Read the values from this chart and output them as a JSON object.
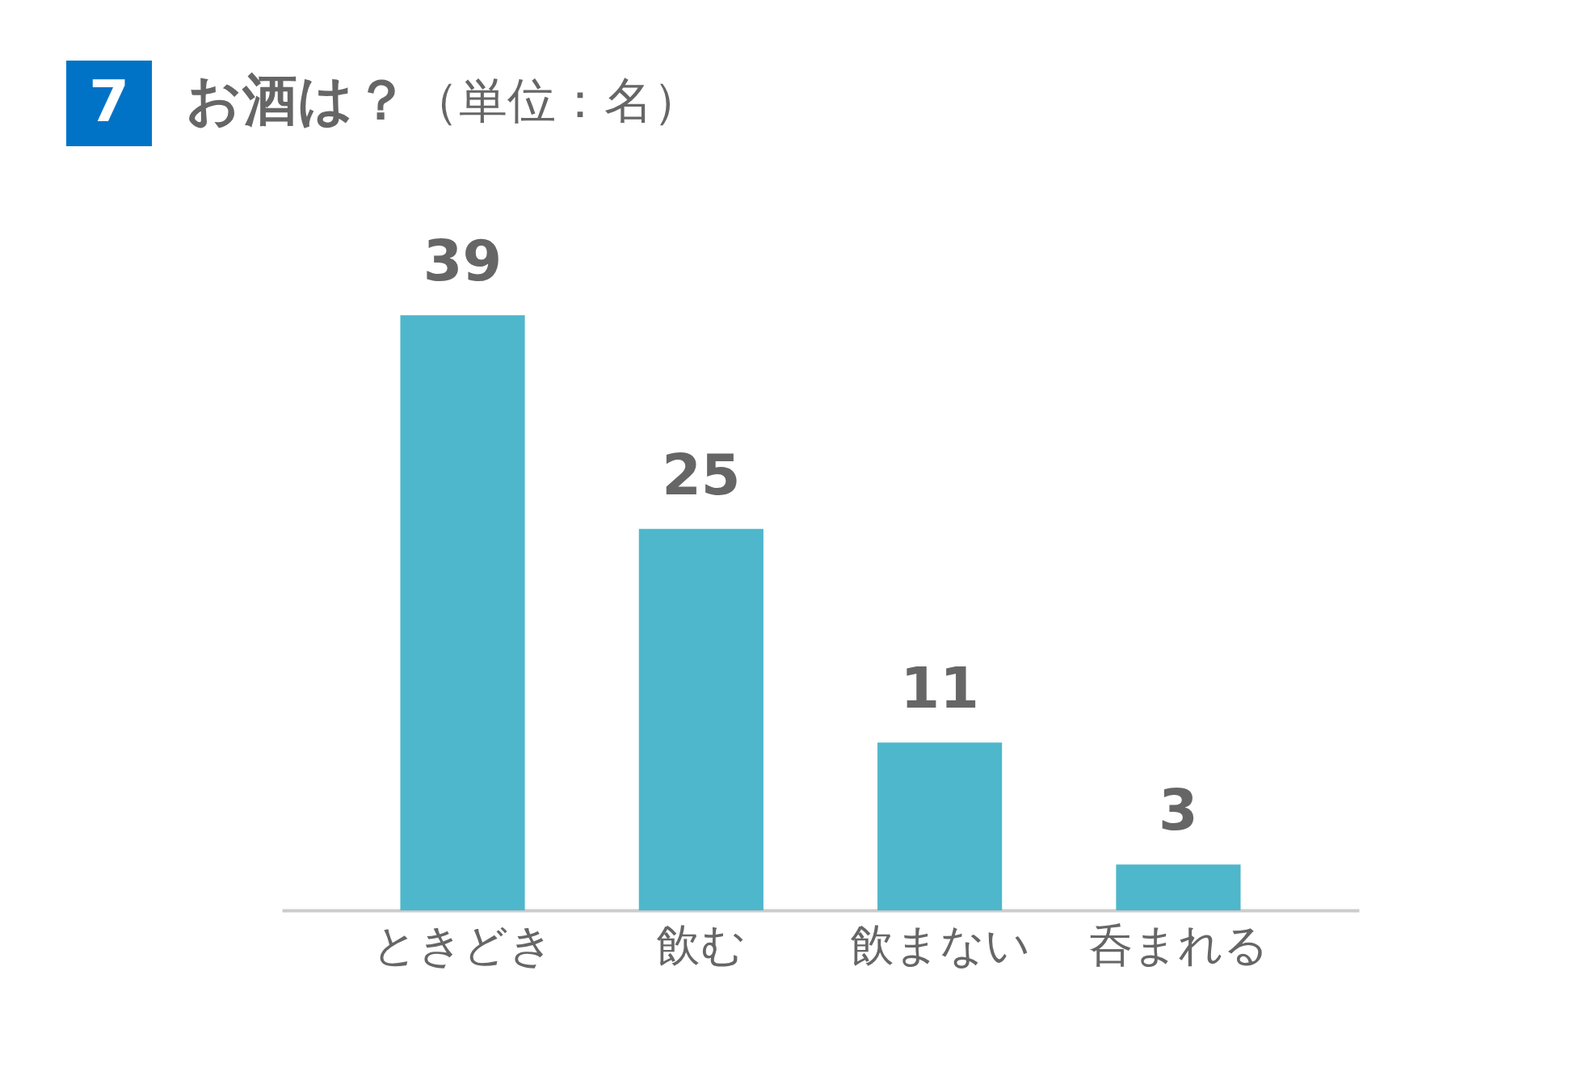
{
  "chart_data": {
    "type": "bar",
    "title": "お酒は？",
    "subtitle": "（単位：名）",
    "annotations": [
      "7"
    ],
    "categories": [
      "ときどき",
      "飲む",
      "飲まない",
      "呑まれる"
    ],
    "values": [
      39,
      25,
      11,
      3
    ],
    "color": "#4fb7cb",
    "data_labels": true
  }
}
